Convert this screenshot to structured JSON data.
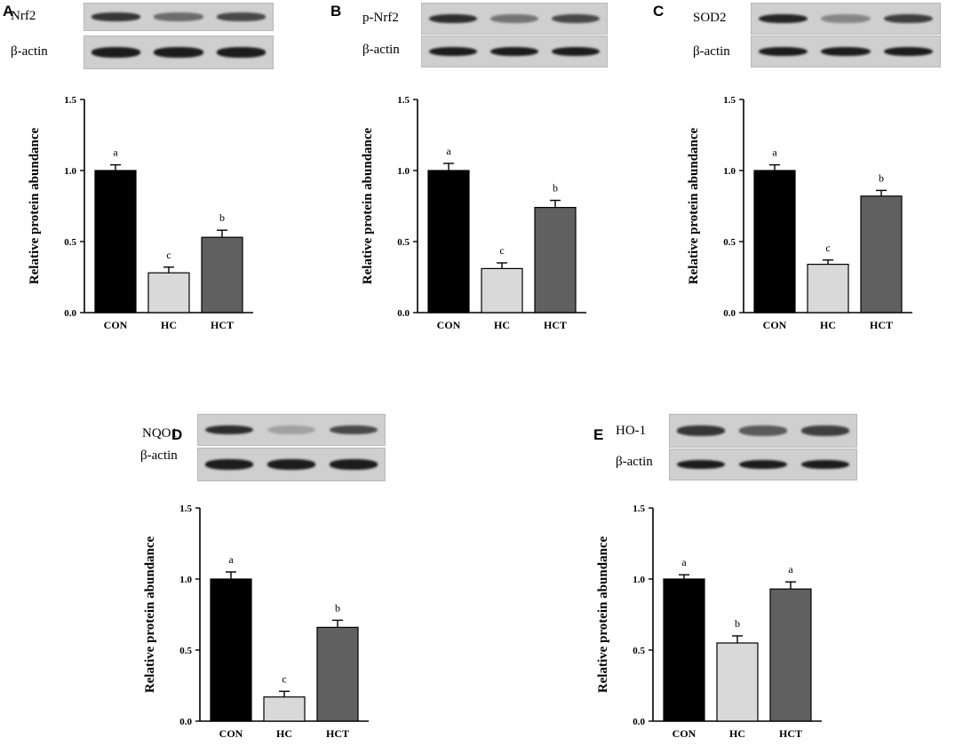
{
  "colors": {
    "CON": "#000000",
    "HC": "#d9d9d9",
    "HCT": "#606060",
    "blot_bg": "#cfcfcf",
    "band": "#1c1c1c"
  },
  "panels": [
    {
      "letter": "A",
      "protein": "Nrf2",
      "loading": "β-actin",
      "band_intensity": [
        0.85,
        0.55,
        0.75
      ],
      "actin_intensity": [
        1,
        1,
        1
      ]
    },
    {
      "letter": "B",
      "protein": "p-Nrf2",
      "loading": "β-actin",
      "band_intensity": [
        0.9,
        0.5,
        0.75
      ],
      "actin_intensity": [
        1,
        1,
        1
      ]
    },
    {
      "letter": "C",
      "protein": "SOD2",
      "loading": "β-actin",
      "band_intensity": [
        0.95,
        0.4,
        0.8
      ],
      "actin_intensity": [
        1,
        1,
        1
      ]
    },
    {
      "letter": "D",
      "protein": "NQO1",
      "loading": "β-actin",
      "band_intensity": [
        0.9,
        0.25,
        0.75
      ],
      "actin_intensity": [
        1,
        1,
        1
      ]
    },
    {
      "letter": "E",
      "protein": "HO-1",
      "loading": "β-actin",
      "band_intensity": [
        0.85,
        0.65,
        0.8
      ],
      "actin_intensity": [
        1,
        1,
        1
      ]
    }
  ],
  "chart_data": [
    {
      "type": "bar",
      "categories": [
        "CON",
        "HC",
        "HCT"
      ],
      "values": [
        1.0,
        0.28,
        0.53
      ],
      "errors": [
        0.04,
        0.04,
        0.05
      ],
      "labels": [
        "a",
        "c",
        "b"
      ],
      "ylabel": "Relative protein abundance",
      "ylim": [
        0,
        1.5
      ],
      "yticks": [
        "0.0",
        "0.5",
        "1.0",
        "1.5"
      ]
    },
    {
      "type": "bar",
      "categories": [
        "CON",
        "HC",
        "HCT"
      ],
      "values": [
        1.0,
        0.31,
        0.74
      ],
      "errors": [
        0.05,
        0.04,
        0.05
      ],
      "labels": [
        "a",
        "c",
        "b"
      ],
      "ylabel": "Relative protein abundance",
      "ylim": [
        0,
        1.5
      ],
      "yticks": [
        "0.0",
        "0.5",
        "1.0",
        "1.5"
      ]
    },
    {
      "type": "bar",
      "categories": [
        "CON",
        "HC",
        "HCT"
      ],
      "values": [
        1.0,
        0.34,
        0.82
      ],
      "errors": [
        0.04,
        0.03,
        0.04
      ],
      "labels": [
        "a",
        "c",
        "b"
      ],
      "ylabel": "Relative protein abundance",
      "ylim": [
        0,
        1.5
      ],
      "yticks": [
        "0.0",
        "0.5",
        "1.0",
        "1.5"
      ]
    },
    {
      "type": "bar",
      "categories": [
        "CON",
        "HC",
        "HCT"
      ],
      "values": [
        1.0,
        0.17,
        0.66
      ],
      "errors": [
        0.05,
        0.04,
        0.05
      ],
      "labels": [
        "a",
        "c",
        "b"
      ],
      "ylabel": "Relative protein abundance",
      "ylim": [
        0,
        1.5
      ],
      "yticks": [
        "0.0",
        "0.5",
        "1.0",
        "1.5"
      ]
    },
    {
      "type": "bar",
      "categories": [
        "CON",
        "HC",
        "HCT"
      ],
      "values": [
        1.0,
        0.55,
        0.93
      ],
      "errors": [
        0.03,
        0.05,
        0.05
      ],
      "labels": [
        "a",
        "b",
        "a"
      ],
      "ylabel": "Relative protein abundance",
      "ylim": [
        0,
        1.5
      ],
      "yticks": [
        "0.0",
        "0.5",
        "1.0",
        "1.5"
      ]
    }
  ]
}
